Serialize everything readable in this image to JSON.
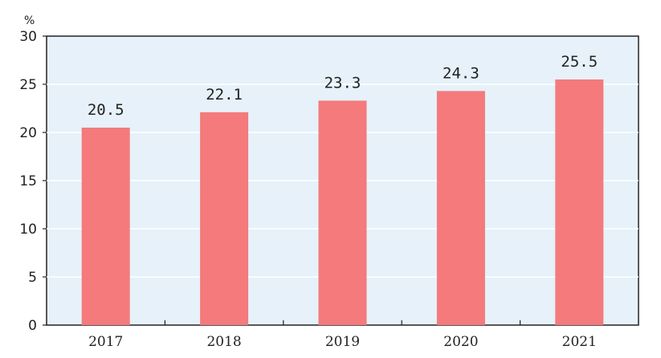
{
  "chart_data": {
    "type": "bar",
    "title": "",
    "xlabel": "",
    "ylabel": "%",
    "categories": [
      "2017",
      "2018",
      "2019",
      "2020",
      "2021"
    ],
    "values": [
      20.5,
      22.1,
      23.3,
      24.3,
      25.5
    ],
    "value_labels": [
      "20.5",
      "22.1",
      "23.3",
      "24.3",
      "25.5"
    ],
    "ylim": [
      0,
      30
    ],
    "yticks": [
      "0",
      "5",
      "10",
      "15",
      "20",
      "25",
      "30"
    ],
    "grid": true,
    "legend": "none",
    "colors": {
      "bar": "#f47a7c",
      "plot_background": "#e6f1f9",
      "gridline": "#ffffff",
      "axis": "#222222"
    }
  }
}
